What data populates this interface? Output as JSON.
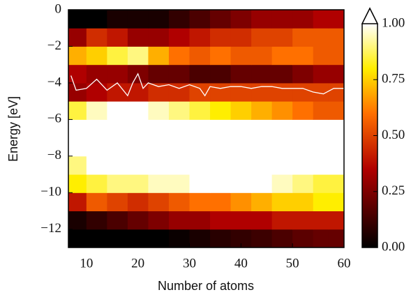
{
  "chart_data": {
    "type": "heatmap",
    "xlabel": "Number of atoms",
    "ylabel": "Energy [eV]",
    "xlim": [
      6.5,
      60
    ],
    "ylim": [
      -13,
      0
    ],
    "xticks": [
      10,
      20,
      30,
      40,
      50,
      60
    ],
    "yticks": [
      {
        "value": 0,
        "label": "0"
      },
      {
        "value": -2,
        "label": "−2"
      },
      {
        "value": -4,
        "label": "−4"
      },
      {
        "value": -6,
        "label": "−6"
      },
      {
        "value": -8,
        "label": "−8"
      },
      {
        "value": -10,
        "label": "−10"
      },
      {
        "value": -12,
        "label": "−12"
      }
    ],
    "x_edges": [
      6.5,
      10,
      14,
      18,
      22,
      26,
      30,
      34,
      38,
      42,
      46,
      50,
      54,
      57,
      60
    ],
    "y_edges": [
      -13,
      -12,
      -11,
      -10,
      -9,
      -8,
      -7,
      -6,
      -5,
      -4,
      -3,
      -2,
      -1,
      0
    ],
    "z": [
      [
        0,
        0,
        0,
        0,
        0,
        0.02,
        0.05,
        0.08,
        0.1,
        0.12,
        0.15,
        0.18,
        0.2,
        0.2
      ],
      [
        0.05,
        0.1,
        0.15,
        0.2,
        0.25,
        0.3,
        0.3,
        0.35,
        0.35,
        0.35,
        0.4,
        0.4,
        0.4,
        0.4
      ],
      [
        0.4,
        0.55,
        0.5,
        0.45,
        0.5,
        0.55,
        0.6,
        0.6,
        0.65,
        0.7,
        0.75,
        0.75,
        0.8,
        0.8
      ],
      [
        0.8,
        0.85,
        0.9,
        0.9,
        0.95,
        0.95,
        1,
        1,
        1,
        1,
        0.95,
        0.9,
        0.85,
        0.85
      ],
      [
        0.9,
        1,
        1,
        1,
        1,
        1,
        1,
        1,
        1,
        1,
        1,
        1,
        1,
        1
      ],
      [
        1,
        1,
        1,
        1,
        1,
        1,
        1,
        1,
        1,
        1,
        1,
        1,
        1,
        1
      ],
      [
        1,
        1,
        1,
        1,
        1,
        1,
        1,
        1,
        1,
        1,
        1,
        1,
        1,
        1
      ],
      [
        0.85,
        0.95,
        1,
        1,
        0.95,
        0.9,
        0.85,
        0.8,
        0.75,
        0.7,
        0.65,
        0.6,
        0.55,
        0.55
      ],
      [
        0.3,
        0.35,
        0.4,
        0.4,
        0.45,
        0.45,
        0.5,
        0.5,
        0.5,
        0.5,
        0.5,
        0.5,
        0.5,
        0.5
      ],
      [
        0.35,
        0.3,
        0.3,
        0.25,
        0.2,
        0.2,
        0.15,
        0.15,
        0.2,
        0.2,
        0.2,
        0.25,
        0.3,
        0.3
      ],
      [
        0.7,
        0.75,
        0.85,
        0.9,
        0.7,
        0.6,
        0.55,
        0.6,
        0.55,
        0.55,
        0.6,
        0.6,
        0.55,
        0.55
      ],
      [
        0.3,
        0.45,
        0.4,
        0.3,
        0.3,
        0.35,
        0.4,
        0.45,
        0.45,
        0.5,
        0.5,
        0.55,
        0.55,
        0.55
      ],
      [
        0,
        0,
        0.05,
        0.05,
        0.05,
        0.1,
        0.15,
        0.2,
        0.25,
        0.3,
        0.3,
        0.3,
        0.35,
        0.35
      ]
    ],
    "line": {
      "color": "#ffffff",
      "x": [
        7,
        8,
        10,
        12,
        14,
        16,
        18,
        19,
        20,
        21,
        22,
        24,
        26,
        28,
        30,
        32,
        33,
        34,
        36,
        38,
        40,
        42,
        44,
        46,
        48,
        50,
        52,
        54,
        56,
        58,
        60
      ],
      "values": [
        -3.6,
        -4.4,
        -4.3,
        -3.8,
        -4.4,
        -4.0,
        -4.7,
        -4.0,
        -3.5,
        -4.3,
        -4.0,
        -4.2,
        -4.1,
        -4.3,
        -4.1,
        -4.3,
        -4.7,
        -4.2,
        -4.3,
        -4.2,
        -4.2,
        -4.3,
        -4.2,
        -4.2,
        -4.3,
        -4.3,
        -4.3,
        -4.5,
        -4.6,
        -4.3,
        -4.3
      ]
    },
    "clim": [
      0,
      1
    ],
    "cticks": [
      {
        "value": 0,
        "label": "0.00"
      },
      {
        "value": 0.25,
        "label": "0.25"
      },
      {
        "value": 0.5,
        "label": "0.50"
      },
      {
        "value": 0.75,
        "label": "0.75"
      },
      {
        "value": 1,
        "label": "1.00"
      }
    ]
  }
}
